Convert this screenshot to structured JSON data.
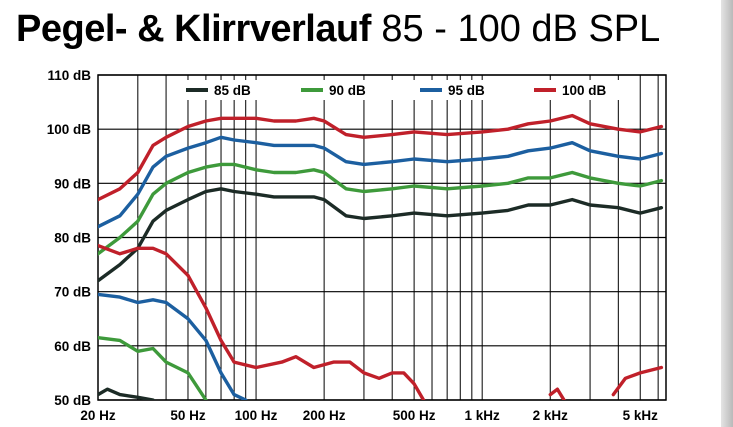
{
  "page": {
    "title_bold": "Pegel- & Klirrverlauf",
    "title_regular": "85 - 100 dB SPL"
  },
  "chart_data": {
    "type": "line",
    "title": "Pegel- & Klirrverlauf 85 - 100 dB SPL",
    "xlabel": "",
    "ylabel": "",
    "x_scale": "log",
    "xlim": [
      20,
      6500
    ],
    "ylim": [
      50,
      110
    ],
    "grid": true,
    "legend_position": "top-right",
    "y_ticks": [
      {
        "value": 110,
        "label": "110 dB"
      },
      {
        "value": 100,
        "label": "100 dB"
      },
      {
        "value": 90,
        "label": "90 dB"
      },
      {
        "value": 80,
        "label": "80 dB"
      },
      {
        "value": 70,
        "label": "70 dB"
      },
      {
        "value": 60,
        "label": "60 dB"
      },
      {
        "value": 50,
        "label": "50 dB"
      }
    ],
    "x_ticks": [
      {
        "value": 20,
        "label": "20 Hz"
      },
      {
        "value": 50,
        "label": "50 Hz"
      },
      {
        "value": 100,
        "label": "100 Hz"
      },
      {
        "value": 200,
        "label": "200 Hz"
      },
      {
        "value": 500,
        "label": "500 Hz"
      },
      {
        "value": 1000,
        "label": "1 kHz"
      },
      {
        "value": 2000,
        "label": "2 kHz"
      },
      {
        "value": 5000,
        "label": "5 kHz"
      }
    ],
    "series": [
      {
        "name": "85 dB",
        "color": "#1c2b26",
        "frequency_response": [
          [
            20,
            72
          ],
          [
            25,
            75
          ],
          [
            30,
            78
          ],
          [
            35,
            83
          ],
          [
            40,
            85
          ],
          [
            50,
            87
          ],
          [
            60,
            88.5
          ],
          [
            70,
            89
          ],
          [
            80,
            88.5
          ],
          [
            100,
            88
          ],
          [
            120,
            87.5
          ],
          [
            150,
            87.5
          ],
          [
            180,
            87.5
          ],
          [
            200,
            87
          ],
          [
            250,
            84
          ],
          [
            300,
            83.5
          ],
          [
            400,
            84
          ],
          [
            500,
            84.5
          ],
          [
            700,
            84
          ],
          [
            1000,
            84.5
          ],
          [
            1300,
            85
          ],
          [
            1600,
            86
          ],
          [
            2000,
            86
          ],
          [
            2500,
            87
          ],
          [
            3000,
            86
          ],
          [
            4000,
            85.5
          ],
          [
            5000,
            84.5
          ],
          [
            6200,
            85.5
          ]
        ],
        "distortion": [
          [
            20,
            51
          ],
          [
            22,
            52
          ],
          [
            25,
            51
          ],
          [
            30,
            50.5
          ],
          [
            35,
            50
          ]
        ]
      },
      {
        "name": "90 dB",
        "color": "#3e9a3b",
        "frequency_response": [
          [
            20,
            77
          ],
          [
            25,
            80
          ],
          [
            30,
            83
          ],
          [
            35,
            88
          ],
          [
            40,
            90
          ],
          [
            50,
            92
          ],
          [
            60,
            93
          ],
          [
            70,
            93.5
          ],
          [
            80,
            93.5
          ],
          [
            100,
            92.5
          ],
          [
            120,
            92
          ],
          [
            150,
            92
          ],
          [
            180,
            92.5
          ],
          [
            200,
            92
          ],
          [
            250,
            89
          ],
          [
            300,
            88.5
          ],
          [
            400,
            89
          ],
          [
            500,
            89.5
          ],
          [
            700,
            89
          ],
          [
            1000,
            89.5
          ],
          [
            1300,
            90
          ],
          [
            1600,
            91
          ],
          [
            2000,
            91
          ],
          [
            2500,
            92
          ],
          [
            3000,
            91
          ],
          [
            4000,
            90
          ],
          [
            5000,
            89.5
          ],
          [
            6200,
            90.5
          ]
        ],
        "distortion": [
          [
            20,
            61.5
          ],
          [
            25,
            61
          ],
          [
            30,
            59
          ],
          [
            35,
            59.5
          ],
          [
            40,
            57
          ],
          [
            50,
            55
          ],
          [
            60,
            50
          ]
        ]
      },
      {
        "name": "95 dB",
        "color": "#1c5fa0",
        "frequency_response": [
          [
            20,
            82
          ],
          [
            25,
            84
          ],
          [
            30,
            88
          ],
          [
            35,
            93
          ],
          [
            40,
            95
          ],
          [
            50,
            96.5
          ],
          [
            60,
            97.5
          ],
          [
            70,
            98.5
          ],
          [
            80,
            98
          ],
          [
            100,
            97.5
          ],
          [
            120,
            97
          ],
          [
            150,
            97
          ],
          [
            180,
            97
          ],
          [
            200,
            96.5
          ],
          [
            250,
            94
          ],
          [
            300,
            93.5
          ],
          [
            400,
            94
          ],
          [
            500,
            94.5
          ],
          [
            700,
            94
          ],
          [
            1000,
            94.5
          ],
          [
            1300,
            95
          ],
          [
            1600,
            96
          ],
          [
            2000,
            96.5
          ],
          [
            2500,
            97.5
          ],
          [
            3000,
            96
          ],
          [
            4000,
            95
          ],
          [
            5000,
            94.5
          ],
          [
            6200,
            95.5
          ]
        ],
        "distortion": [
          [
            20,
            69.5
          ],
          [
            25,
            69
          ],
          [
            30,
            68
          ],
          [
            35,
            68.5
          ],
          [
            40,
            68
          ],
          [
            50,
            65
          ],
          [
            60,
            61
          ],
          [
            70,
            55
          ],
          [
            80,
            51
          ],
          [
            90,
            50
          ]
        ]
      },
      {
        "name": "100 dB",
        "color": "#c0202a",
        "frequency_response": [
          [
            20,
            87
          ],
          [
            25,
            89
          ],
          [
            30,
            92
          ],
          [
            35,
            97
          ],
          [
            40,
            98.5
          ],
          [
            50,
            100.5
          ],
          [
            60,
            101.5
          ],
          [
            70,
            102
          ],
          [
            80,
            102
          ],
          [
            100,
            102
          ],
          [
            120,
            101.5
          ],
          [
            150,
            101.5
          ],
          [
            180,
            102
          ],
          [
            200,
            101.5
          ],
          [
            250,
            99
          ],
          [
            300,
            98.5
          ],
          [
            400,
            99
          ],
          [
            500,
            99.5
          ],
          [
            700,
            99
          ],
          [
            1000,
            99.5
          ],
          [
            1300,
            100
          ],
          [
            1600,
            101
          ],
          [
            2000,
            101.5
          ],
          [
            2500,
            102.5
          ],
          [
            3000,
            101
          ],
          [
            4000,
            100
          ],
          [
            5000,
            99.5
          ],
          [
            6200,
            100.5
          ]
        ],
        "distortion": [
          [
            20,
            78.5
          ],
          [
            25,
            77
          ],
          [
            30,
            78
          ],
          [
            35,
            78
          ],
          [
            40,
            77
          ],
          [
            50,
            73
          ],
          [
            60,
            67
          ],
          [
            70,
            61
          ],
          [
            80,
            57
          ],
          [
            100,
            56
          ],
          [
            130,
            57
          ],
          [
            150,
            58
          ],
          [
            180,
            56
          ],
          [
            220,
            57
          ],
          [
            260,
            57
          ],
          [
            300,
            55
          ],
          [
            350,
            54
          ],
          [
            400,
            55
          ],
          [
            450,
            55
          ],
          [
            500,
            53
          ],
          [
            550,
            50
          ]
        ],
        "distortion_segments_extra": [
          [
            [
              2000,
              51
            ],
            [
              2150,
              52
            ],
            [
              2300,
              50
            ]
          ],
          [
            [
              3800,
              51
            ],
            [
              4300,
              54
            ],
            [
              5000,
              55
            ],
            [
              6200,
              56
            ]
          ]
        ]
      }
    ]
  }
}
